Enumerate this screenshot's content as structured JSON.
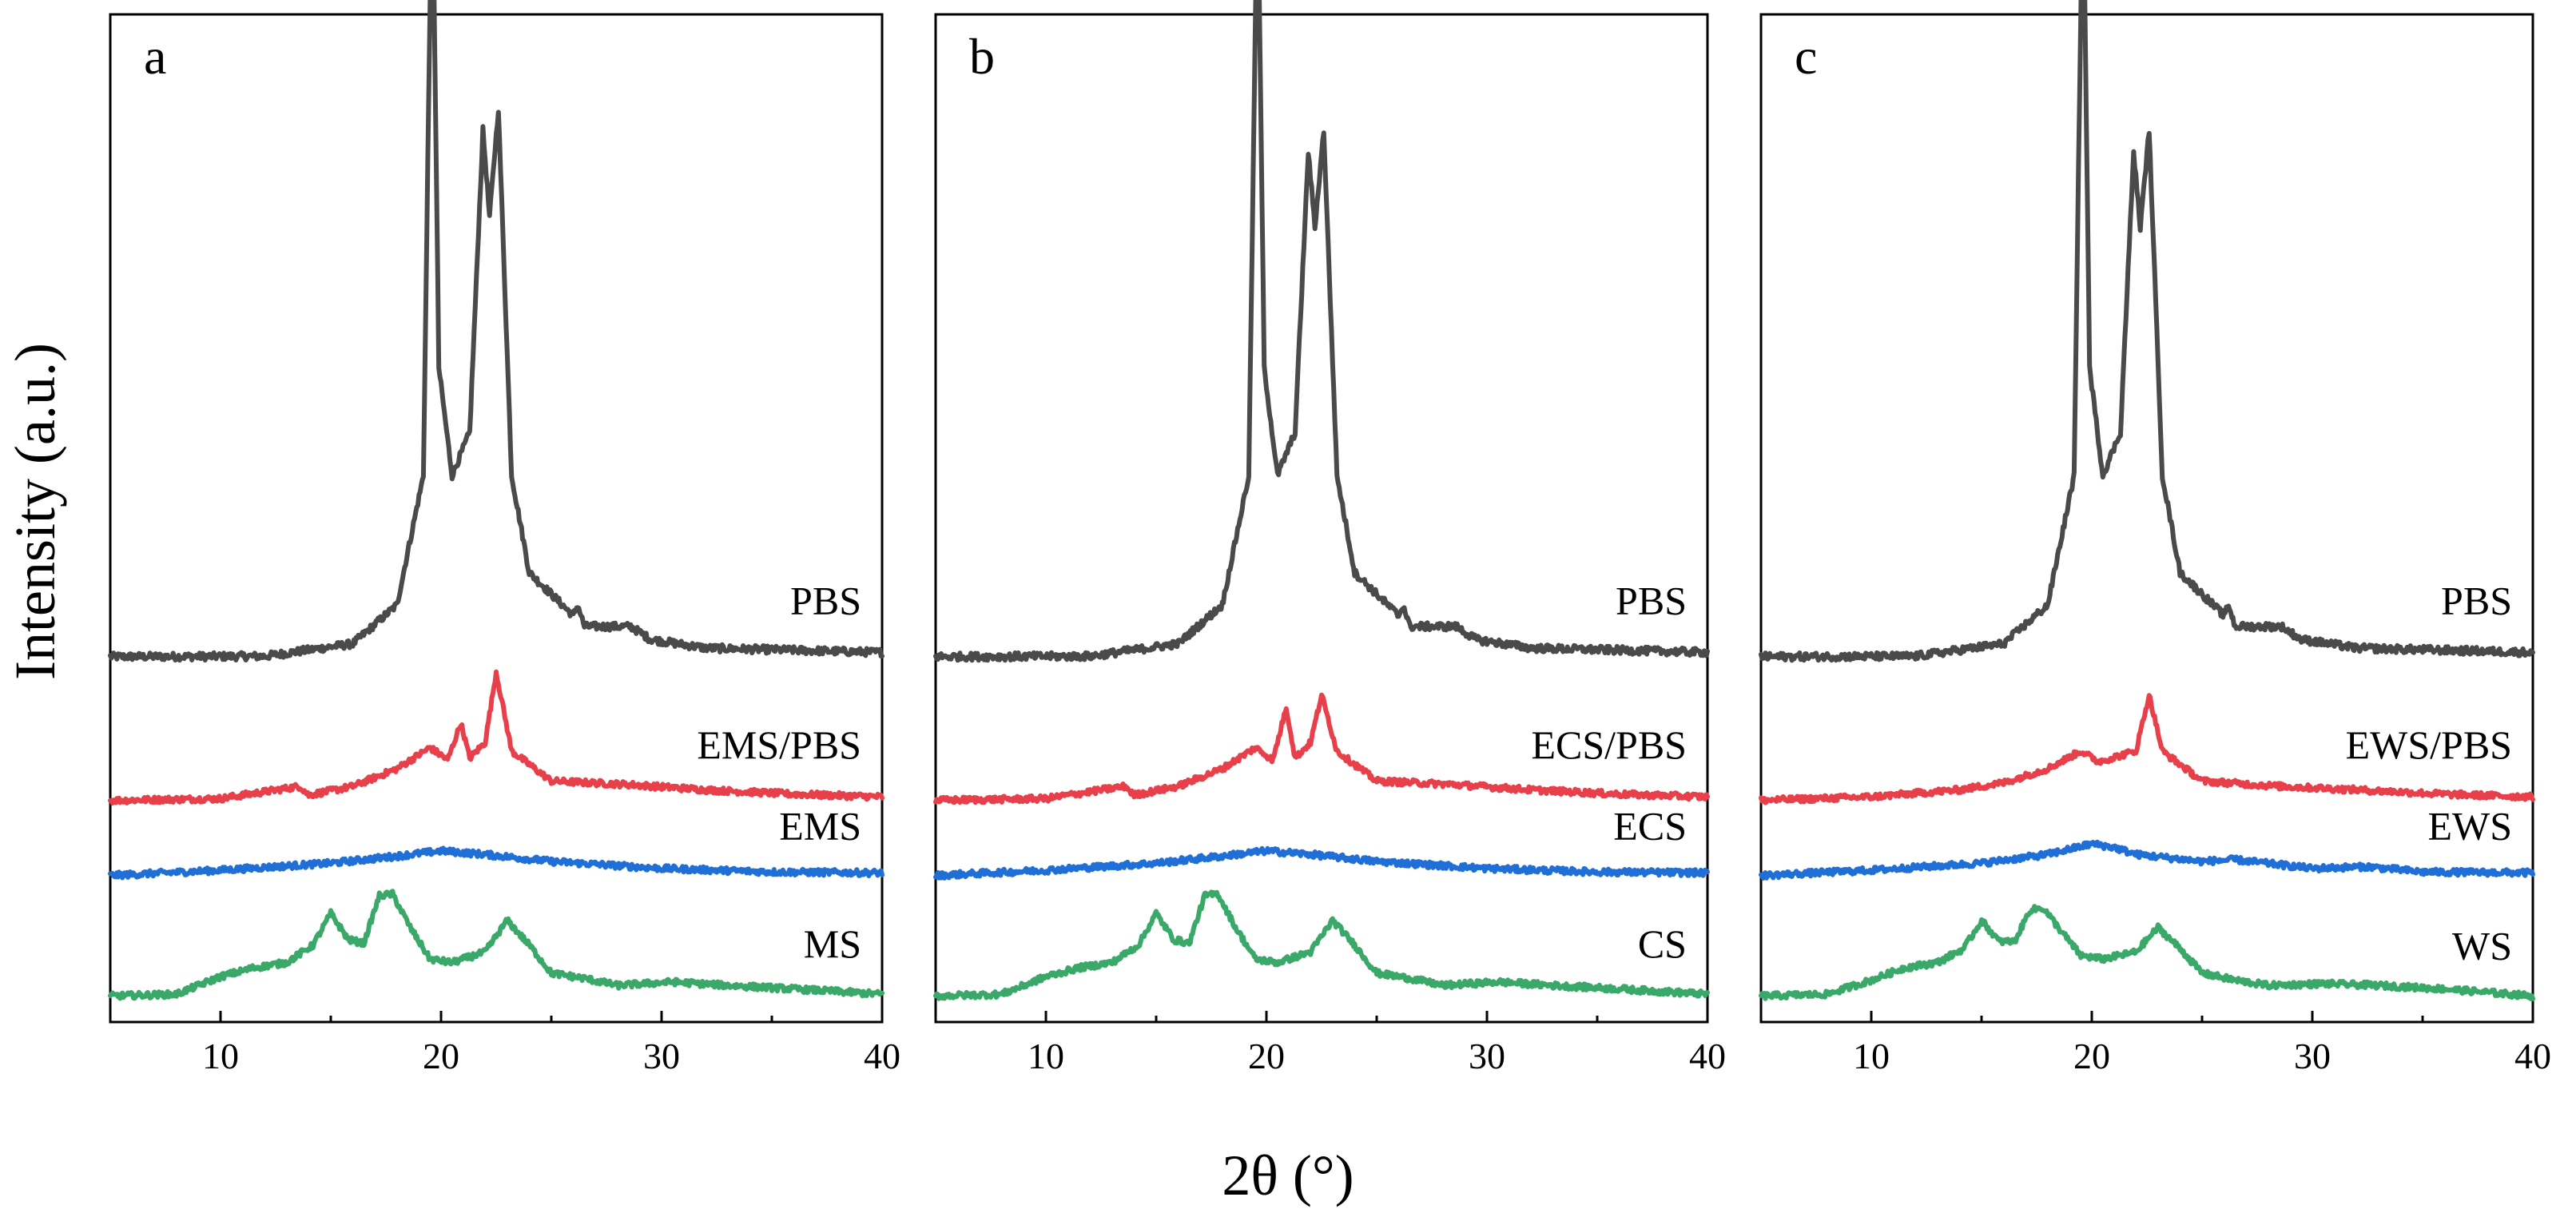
{
  "chart_data": {
    "type": "line",
    "xlabel": "2θ (°)",
    "ylabel": "Intensity (a.u.)",
    "xlim": [
      5,
      40
    ],
    "x_ticks": [
      10,
      20,
      30,
      40
    ],
    "x_tick_labels": [
      "10",
      "20",
      "30",
      "40"
    ],
    "yticks": "none",
    "colors": {
      "PBS": "#4a4a4a",
      "blend": "#e8404a",
      "esterified": "#1f6fd6",
      "native": "#3aa869"
    },
    "panels": [
      {
        "letter": "a",
        "series": [
          {
            "name": "PBS",
            "label": "PBS",
            "color_key": "PBS",
            "points": [
              [
                5,
                0.6
              ],
              [
                12,
                0.62
              ],
              [
                16,
                1.2
              ],
              [
                18,
                3.0
              ],
              [
                19.2,
                9.0
              ],
              [
                19.6,
                38.0
              ],
              [
                19.9,
                14.0
              ],
              [
                20.5,
                9.0
              ],
              [
                21.3,
                11.0
              ],
              [
                21.9,
                25.0
              ],
              [
                22.2,
                21.0
              ],
              [
                22.6,
                26.0
              ],
              [
                23.2,
                9.0
              ],
              [
                24,
                4.5
              ],
              [
                26.0,
                2.5
              ],
              [
                26.2,
                3.0
              ],
              [
                26.5,
                2.0
              ],
              [
                28.6,
                2.0
              ],
              [
                29.5,
                1.4
              ],
              [
                32,
                1.0
              ],
              [
                36,
                0.9
              ],
              [
                40,
                0.8
              ]
            ]
          },
          {
            "name": "EMS/PBS",
            "label": "EMS/PBS",
            "color_key": "blend",
            "points": [
              [
                5,
                0.2
              ],
              [
                10,
                0.3
              ],
              [
                13.6,
                1.0
              ],
              [
                14.0,
                0.5
              ],
              [
                16,
                1.0
              ],
              [
                18,
                2.0
              ],
              [
                19.5,
                3.2
              ],
              [
                20.3,
                2.5
              ],
              [
                20.9,
                4.6
              ],
              [
                21.3,
                2.6
              ],
              [
                22.0,
                3.5
              ],
              [
                22.5,
                7.5
              ],
              [
                23.2,
                3.0
              ],
              [
                25,
                1.3
              ],
              [
                28.5,
                1.1
              ],
              [
                32,
                0.8
              ],
              [
                36,
                0.55
              ],
              [
                40,
                0.4
              ]
            ]
          },
          {
            "name": "EMS",
            "label": "EMS",
            "color_key": "esterified",
            "points": [
              [
                5,
                0.2
              ],
              [
                10,
                0.5
              ],
              [
                15,
                0.9
              ],
              [
                18,
                1.3
              ],
              [
                20,
                1.6
              ],
              [
                22,
                1.4
              ],
              [
                25,
                1.0
              ],
              [
                30,
                0.6
              ],
              [
                35,
                0.4
              ],
              [
                40,
                0.35
              ]
            ]
          },
          {
            "name": "MS",
            "label": "MS",
            "color_key": "native",
            "points": [
              [
                5,
                0.3
              ],
              [
                8,
                0.4
              ],
              [
                10,
                1.4
              ],
              [
                11.5,
                1.9
              ],
              [
                13,
                2.2
              ],
              [
                14.2,
                3.2
              ],
              [
                15.0,
                5.0
              ],
              [
                15.8,
                3.5
              ],
              [
                16.5,
                3.3
              ],
              [
                17.2,
                6.0
              ],
              [
                17.8,
                6.1
              ],
              [
                18.6,
                4.2
              ],
              [
                19.5,
                2.4
              ],
              [
                20.5,
                2.2
              ],
              [
                22,
                2.8
              ],
              [
                23.0,
                4.6
              ],
              [
                24,
                3.2
              ],
              [
                25,
                1.6
              ],
              [
                26.5,
                1.3
              ],
              [
                28,
                0.9
              ],
              [
                30.5,
                1.1
              ],
              [
                33,
                0.9
              ],
              [
                36,
                0.7
              ],
              [
                40,
                0.4
              ]
            ]
          }
        ]
      },
      {
        "letter": "b",
        "series": [
          {
            "name": "PBS",
            "label": "PBS",
            "color_key": "PBS",
            "points": [
              [
                5,
                0.6
              ],
              [
                12,
                0.62
              ],
              [
                16,
                1.2
              ],
              [
                18,
                3.0
              ],
              [
                19.2,
                9.0
              ],
              [
                19.6,
                37.0
              ],
              [
                19.9,
                14.0
              ],
              [
                20.5,
                9.0
              ],
              [
                21.3,
                11.0
              ],
              [
                21.9,
                24.0
              ],
              [
                22.2,
                20.5
              ],
              [
                22.6,
                25.0
              ],
              [
                23.2,
                9.0
              ],
              [
                24,
                4.5
              ],
              [
                26.0,
                2.5
              ],
              [
                26.2,
                3.0
              ],
              [
                26.5,
                2.0
              ],
              [
                28.6,
                2.0
              ],
              [
                29.5,
                1.4
              ],
              [
                32,
                1.0
              ],
              [
                36,
                0.9
              ],
              [
                40,
                0.8
              ]
            ]
          },
          {
            "name": "ECS/PBS",
            "label": "ECS/PBS",
            "color_key": "blend",
            "points": [
              [
                5,
                0.2
              ],
              [
                10,
                0.3
              ],
              [
                13.6,
                1.0
              ],
              [
                14.0,
                0.5
              ],
              [
                16,
                1.0
              ],
              [
                18,
                2.0
              ],
              [
                19.5,
                3.2
              ],
              [
                20.3,
                2.5
              ],
              [
                20.9,
                5.5
              ],
              [
                21.3,
                2.6
              ],
              [
                22.0,
                3.5
              ],
              [
                22.5,
                6.2
              ],
              [
                23.2,
                3.0
              ],
              [
                25,
                1.3
              ],
              [
                28.5,
                1.1
              ],
              [
                32,
                0.8
              ],
              [
                36,
                0.55
              ],
              [
                40,
                0.4
              ]
            ]
          },
          {
            "name": "ECS",
            "label": "ECS",
            "color_key": "esterified",
            "points": [
              [
                5,
                0.2
              ],
              [
                10,
                0.5
              ],
              [
                15,
                0.9
              ],
              [
                18,
                1.3
              ],
              [
                20,
                1.6
              ],
              [
                22,
                1.4
              ],
              [
                25,
                1.0
              ],
              [
                30,
                0.6
              ],
              [
                35,
                0.4
              ],
              [
                40,
                0.35
              ]
            ]
          },
          {
            "name": "CS",
            "label": "CS",
            "color_key": "native",
            "points": [
              [
                5,
                0.3
              ],
              [
                8,
                0.4
              ],
              [
                10,
                1.4
              ],
              [
                11.5,
                1.9
              ],
              [
                13,
                2.2
              ],
              [
                14.2,
                3.2
              ],
              [
                15.0,
                5.0
              ],
              [
                15.8,
                3.5
              ],
              [
                16.5,
                3.3
              ],
              [
                17.2,
                6.0
              ],
              [
                17.8,
                6.1
              ],
              [
                18.6,
                4.2
              ],
              [
                19.5,
                2.4
              ],
              [
                20.5,
                2.2
              ],
              [
                22,
                2.8
              ],
              [
                23.0,
                4.6
              ],
              [
                24,
                3.2
              ],
              [
                25,
                1.6
              ],
              [
                26.5,
                1.3
              ],
              [
                28,
                0.9
              ],
              [
                30.5,
                1.1
              ],
              [
                33,
                0.9
              ],
              [
                36,
                0.7
              ],
              [
                40,
                0.4
              ]
            ]
          }
        ]
      },
      {
        "letter": "c",
        "series": [
          {
            "name": "PBS",
            "label": "PBS",
            "color_key": "PBS",
            "points": [
              [
                5,
                0.6
              ],
              [
                12,
                0.62
              ],
              [
                16,
                1.2
              ],
              [
                18,
                3.0
              ],
              [
                19.2,
                9.0
              ],
              [
                19.6,
                37.5
              ],
              [
                19.9,
                14.0
              ],
              [
                20.5,
                9.0
              ],
              [
                21.3,
                11.0
              ],
              [
                21.9,
                24.0
              ],
              [
                22.2,
                20.5
              ],
              [
                22.6,
                25.0
              ],
              [
                23.2,
                9.0
              ],
              [
                24,
                4.5
              ],
              [
                26.0,
                2.5
              ],
              [
                26.2,
                3.0
              ],
              [
                26.5,
                2.0
              ],
              [
                28.6,
                2.0
              ],
              [
                29.5,
                1.4
              ],
              [
                32,
                1.0
              ],
              [
                36,
                0.9
              ],
              [
                40,
                0.8
              ]
            ]
          },
          {
            "name": "EWS/PBS",
            "label": "EWS/PBS",
            "color_key": "blend",
            "points": [
              [
                5,
                0.2
              ],
              [
                10,
                0.4
              ],
              [
                14,
                0.8
              ],
              [
                16,
                1.2
              ],
              [
                18,
                2.0
              ],
              [
                19.5,
                3.0
              ],
              [
                20.3,
                2.4
              ],
              [
                22.0,
                3.0
              ],
              [
                22.6,
                6.2
              ],
              [
                23.2,
                3.0
              ],
              [
                25,
                1.3
              ],
              [
                28.5,
                1.0
              ],
              [
                32,
                0.8
              ],
              [
                36,
                0.55
              ],
              [
                40,
                0.4
              ]
            ]
          },
          {
            "name": "EWS",
            "label": "EWS",
            "color_key": "esterified",
            "points": [
              [
                5,
                0.2
              ],
              [
                10,
                0.5
              ],
              [
                15,
                0.9
              ],
              [
                18,
                1.4
              ],
              [
                20,
                2.0
              ],
              [
                21,
                1.8
              ],
              [
                22,
                1.4
              ],
              [
                25,
                1.0
              ],
              [
                26.5,
                1.1
              ],
              [
                30,
                0.6
              ],
              [
                32.5,
                0.7
              ],
              [
                35,
                0.4
              ],
              [
                40,
                0.35
              ]
            ]
          },
          {
            "name": "WS",
            "label": "WS",
            "color_key": "native",
            "points": [
              [
                5,
                0.3
              ],
              [
                8,
                0.4
              ],
              [
                10,
                1.2
              ],
              [
                11.5,
                1.9
              ],
              [
                13,
                2.2
              ],
              [
                14.2,
                3.0
              ],
              [
                15.0,
                4.6
              ],
              [
                15.8,
                3.4
              ],
              [
                16.5,
                3.4
              ],
              [
                17.2,
                5.2
              ],
              [
                17.8,
                5.3
              ],
              [
                18.6,
                4.0
              ],
              [
                19.5,
                2.6
              ],
              [
                20.5,
                2.4
              ],
              [
                22,
                2.8
              ],
              [
                23.0,
                4.2
              ],
              [
                24,
                3.0
              ],
              [
                25,
                1.6
              ],
              [
                26.5,
                1.2
              ],
              [
                28,
                0.9
              ],
              [
                30.5,
                1.0
              ],
              [
                33,
                0.9
              ],
              [
                36,
                0.7
              ],
              [
                40,
                0.3
              ]
            ]
          }
        ]
      }
    ]
  }
}
